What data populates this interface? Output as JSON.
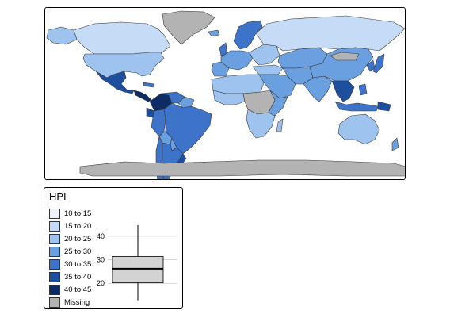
{
  "legend": {
    "title": "HPI",
    "classes": [
      {
        "label": "10 to 15",
        "color": "#eef3fb"
      },
      {
        "label": "15 to 20",
        "color": "#c6dbf5"
      },
      {
        "label": "20 to 25",
        "color": "#9ec3ef"
      },
      {
        "label": "25 to 30",
        "color": "#6a9fe0"
      },
      {
        "label": "30 to 35",
        "color": "#3d73c8"
      },
      {
        "label": "35 to 40",
        "color": "#1d4f9e"
      },
      {
        "label": "40 to 45",
        "color": "#0c2c63"
      },
      {
        "label": "Missing",
        "color": "#b3b3b3"
      }
    ],
    "boxplot": {
      "ticks": [
        "40",
        "30",
        "20"
      ],
      "tick_values": [
        40,
        30,
        20
      ],
      "min": 12.8,
      "q1": 20.2,
      "median": 26.2,
      "q3": 31.4,
      "max": 44.7
    }
  }
}
